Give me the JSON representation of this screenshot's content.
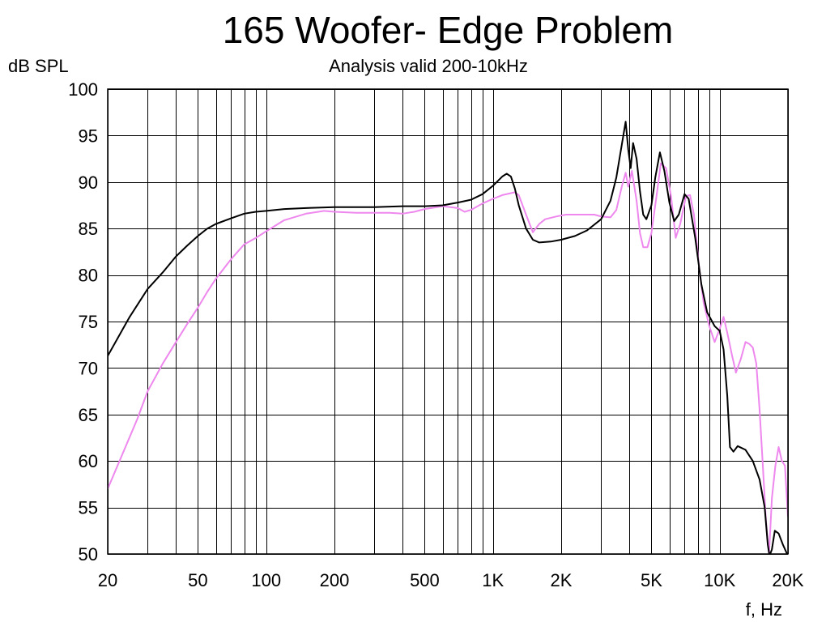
{
  "chart_data": {
    "type": "line",
    "title": "165 Woofer- Edge Problem",
    "subtitle": "Analysis valid 200-10kHz",
    "ylabel": "dB SPL",
    "xlabel": "f, Hz",
    "xscale": "log",
    "xlim": [
      20,
      20000
    ],
    "ylim": [
      50,
      100
    ],
    "grid": true,
    "x_tick_labels": [
      {
        "value": 20,
        "label": "20"
      },
      {
        "value": 50,
        "label": "50"
      },
      {
        "value": 100,
        "label": "100"
      },
      {
        "value": 200,
        "label": "200"
      },
      {
        "value": 500,
        "label": "500"
      },
      {
        "value": 1000,
        "label": "1K"
      },
      {
        "value": 2000,
        "label": "2K"
      },
      {
        "value": 5000,
        "label": "5K"
      },
      {
        "value": 10000,
        "label": "10K"
      },
      {
        "value": 20000,
        "label": "20K"
      }
    ],
    "y_ticks": [
      100,
      95,
      90,
      85,
      80,
      75,
      70,
      65,
      60,
      55,
      50
    ],
    "series": [
      {
        "color": "#000000",
        "points": [
          [
            20,
            71.3
          ],
          [
            25,
            75.5
          ],
          [
            30,
            78.5
          ],
          [
            35,
            80.3
          ],
          [
            40,
            82.0
          ],
          [
            45,
            83.2
          ],
          [
            50,
            84.2
          ],
          [
            55,
            85.0
          ],
          [
            60,
            85.5
          ],
          [
            70,
            86.1
          ],
          [
            80,
            86.6
          ],
          [
            90,
            86.8
          ],
          [
            100,
            86.9
          ],
          [
            120,
            87.1
          ],
          [
            150,
            87.2
          ],
          [
            200,
            87.3
          ],
          [
            300,
            87.3
          ],
          [
            400,
            87.4
          ],
          [
            500,
            87.4
          ],
          [
            600,
            87.5
          ],
          [
            700,
            87.8
          ],
          [
            800,
            88.1
          ],
          [
            900,
            88.7
          ],
          [
            1000,
            89.6
          ],
          [
            1100,
            90.6
          ],
          [
            1150,
            90.9
          ],
          [
            1200,
            90.6
          ],
          [
            1250,
            89.3
          ],
          [
            1300,
            87.5
          ],
          [
            1400,
            85.0
          ],
          [
            1500,
            83.8
          ],
          [
            1600,
            83.5
          ],
          [
            1800,
            83.6
          ],
          [
            2000,
            83.8
          ],
          [
            2300,
            84.2
          ],
          [
            2600,
            84.8
          ],
          [
            3000,
            86.0
          ],
          [
            3300,
            88.0
          ],
          [
            3500,
            90.5
          ],
          [
            3700,
            94.0
          ],
          [
            3850,
            96.5
          ],
          [
            3950,
            93.5
          ],
          [
            4050,
            91.5
          ],
          [
            4150,
            94.2
          ],
          [
            4300,
            92.5
          ],
          [
            4450,
            89.0
          ],
          [
            4600,
            86.5
          ],
          [
            4750,
            86.0
          ],
          [
            5000,
            87.5
          ],
          [
            5200,
            90.5
          ],
          [
            5450,
            93.2
          ],
          [
            5700,
            91.2
          ],
          [
            6000,
            87.8
          ],
          [
            6300,
            85.8
          ],
          [
            6600,
            86.5
          ],
          [
            7000,
            88.7
          ],
          [
            7300,
            88.2
          ],
          [
            7800,
            84.0
          ],
          [
            8300,
            79.0
          ],
          [
            8800,
            76.0
          ],
          [
            9500,
            74.5
          ],
          [
            10000,
            74.0
          ],
          [
            10400,
            72.0
          ],
          [
            10800,
            67.0
          ],
          [
            11100,
            61.5
          ],
          [
            11500,
            61.0
          ],
          [
            12000,
            61.6
          ],
          [
            13000,
            61.2
          ],
          [
            14000,
            60.0
          ],
          [
            15000,
            58.0
          ],
          [
            15800,
            55.0
          ],
          [
            16300,
            51.0
          ],
          [
            16600,
            49.8
          ],
          [
            17000,
            50.5
          ],
          [
            17500,
            52.5
          ],
          [
            18200,
            52.2
          ],
          [
            19000,
            51.0
          ],
          [
            20000,
            49.8
          ]
        ]
      },
      {
        "color": "#ee88ee",
        "points": [
          [
            20,
            57.0
          ],
          [
            23,
            60.5
          ],
          [
            27,
            64.5
          ],
          [
            30,
            67.5
          ],
          [
            35,
            70.5
          ],
          [
            40,
            72.8
          ],
          [
            45,
            74.8
          ],
          [
            50,
            76.5
          ],
          [
            55,
            78.2
          ],
          [
            60,
            79.6
          ],
          [
            70,
            81.7
          ],
          [
            80,
            83.3
          ],
          [
            90,
            84.0
          ],
          [
            100,
            84.7
          ],
          [
            120,
            85.9
          ],
          [
            150,
            86.6
          ],
          [
            180,
            86.9
          ],
          [
            200,
            86.8
          ],
          [
            250,
            86.7
          ],
          [
            300,
            86.7
          ],
          [
            350,
            86.7
          ],
          [
            400,
            86.6
          ],
          [
            450,
            86.8
          ],
          [
            500,
            87.1
          ],
          [
            600,
            87.4
          ],
          [
            700,
            87.2
          ],
          [
            750,
            86.8
          ],
          [
            800,
            87.0
          ],
          [
            900,
            87.7
          ],
          [
            1000,
            88.2
          ],
          [
            1100,
            88.6
          ],
          [
            1250,
            88.9
          ],
          [
            1300,
            88.6
          ],
          [
            1400,
            86.5
          ],
          [
            1500,
            84.6
          ],
          [
            1600,
            85.5
          ],
          [
            1700,
            86.0
          ],
          [
            1900,
            86.3
          ],
          [
            2100,
            86.5
          ],
          [
            2500,
            86.5
          ],
          [
            2800,
            86.5
          ],
          [
            3000,
            86.3
          ],
          [
            3300,
            86.2
          ],
          [
            3500,
            87.0
          ],
          [
            3700,
            89.5
          ],
          [
            3850,
            91.0
          ],
          [
            3950,
            89.5
          ],
          [
            4100,
            91.2
          ],
          [
            4300,
            88.0
          ],
          [
            4450,
            84.5
          ],
          [
            4600,
            83.0
          ],
          [
            4800,
            83.0
          ],
          [
            5000,
            84.5
          ],
          [
            5300,
            89.0
          ],
          [
            5500,
            92.0
          ],
          [
            5800,
            91.5
          ],
          [
            6100,
            88.5
          ],
          [
            6400,
            84.0
          ],
          [
            6700,
            85.5
          ],
          [
            7100,
            88.5
          ],
          [
            7400,
            88.6
          ],
          [
            7700,
            86.5
          ],
          [
            8100,
            81.0
          ],
          [
            8500,
            77.0
          ],
          [
            9000,
            74.5
          ],
          [
            9500,
            72.8
          ],
          [
            10000,
            74.2
          ],
          [
            10400,
            75.5
          ],
          [
            10800,
            73.8
          ],
          [
            11300,
            71.5
          ],
          [
            11800,
            69.5
          ],
          [
            12400,
            71.0
          ],
          [
            13000,
            72.8
          ],
          [
            13500,
            72.6
          ],
          [
            14000,
            72.2
          ],
          [
            14500,
            70.5
          ],
          [
            15000,
            65.5
          ],
          [
            15500,
            59.5
          ],
          [
            16000,
            53.5
          ],
          [
            16500,
            49.9
          ],
          [
            17000,
            56.0
          ],
          [
            17600,
            59.5
          ],
          [
            18200,
            61.5
          ],
          [
            18800,
            60.0
          ],
          [
            19400,
            59.5
          ],
          [
            20000,
            54.0
          ]
        ]
      }
    ]
  }
}
